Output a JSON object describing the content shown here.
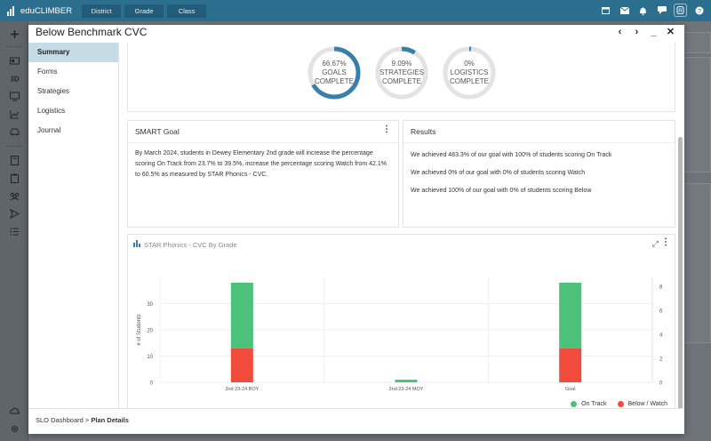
{
  "app": {
    "name": "eduCLIMBER",
    "nav_tabs": [
      "District",
      "Grade",
      "Class"
    ]
  },
  "top_icons": [
    "calendar-icon",
    "mail-icon",
    "bell-icon",
    "chat-icon",
    "user-icon",
    "help-icon"
  ],
  "rail_icons": [
    "plus-icon",
    "id-card-icon",
    "3d-icon",
    "monitor-icon",
    "chart-icon",
    "car-icon",
    "notebook-icon",
    "clipboard-icon",
    "group-icon",
    "send-icon",
    "list-icon",
    "cloud-icon",
    "gear-icon"
  ],
  "modal": {
    "title": "Below Benchmark CVC",
    "sidebar": [
      "Summary",
      "Forms",
      "Strategies",
      "Logistics",
      "Journal"
    ],
    "donuts": [
      {
        "pct": "66.67%",
        "label": "GOALS",
        "sub": "COMPLETE",
        "fraction": 0.6667
      },
      {
        "pct": "9.09%",
        "label": "STRATEGIES",
        "sub": "COMPLETE",
        "fraction": 0.0909
      },
      {
        "pct": "0%",
        "label": "LOGISTICS",
        "sub": "COMPLETE",
        "fraction": 0.0
      }
    ],
    "smart_goal": {
      "title": "SMART Goal",
      "text": "By March 2024, students in Dewey Elementary 2nd grade will increase the percentage scoring On Track from 23.7% to 39.5%, increase the percentage scoring Watch from 42.1% to 60.5% as measured by STAR Phonics - CVC."
    },
    "results": {
      "title": "Results",
      "lines": [
        "We achieved 483.3% of our goal with 100% of students scoring On Track",
        "We achieved 0% of our goal with 0% of students scoring Watch",
        "We achieved 100% of our goal with 0% of students scoring Below"
      ]
    },
    "chart_title": "STAR Phonics - CVC By Grade",
    "breadcrumb": {
      "root": "SLO Dashboard",
      "sep": " > ",
      "current": "Plan Details"
    }
  },
  "chart_data": {
    "type": "bar",
    "stacked": true,
    "categories": [
      "2nd 23-24 BOY",
      "2nd 23-24 MOY",
      "Goal"
    ],
    "series": [
      {
        "name": "On Track",
        "color": "#4cc17a",
        "values": [
          25,
          1,
          25
        ]
      },
      {
        "name": "Below / Watch",
        "color": "#f04b3c",
        "values": [
          13,
          0,
          13
        ]
      }
    ],
    "ylabel": "# of Students",
    "ylim": [
      0,
      40
    ],
    "yticks": [
      0,
      10,
      20,
      30
    ],
    "y2ticks": [
      0,
      2,
      4,
      6,
      8
    ],
    "grid": true,
    "legend": "bottom-right"
  }
}
